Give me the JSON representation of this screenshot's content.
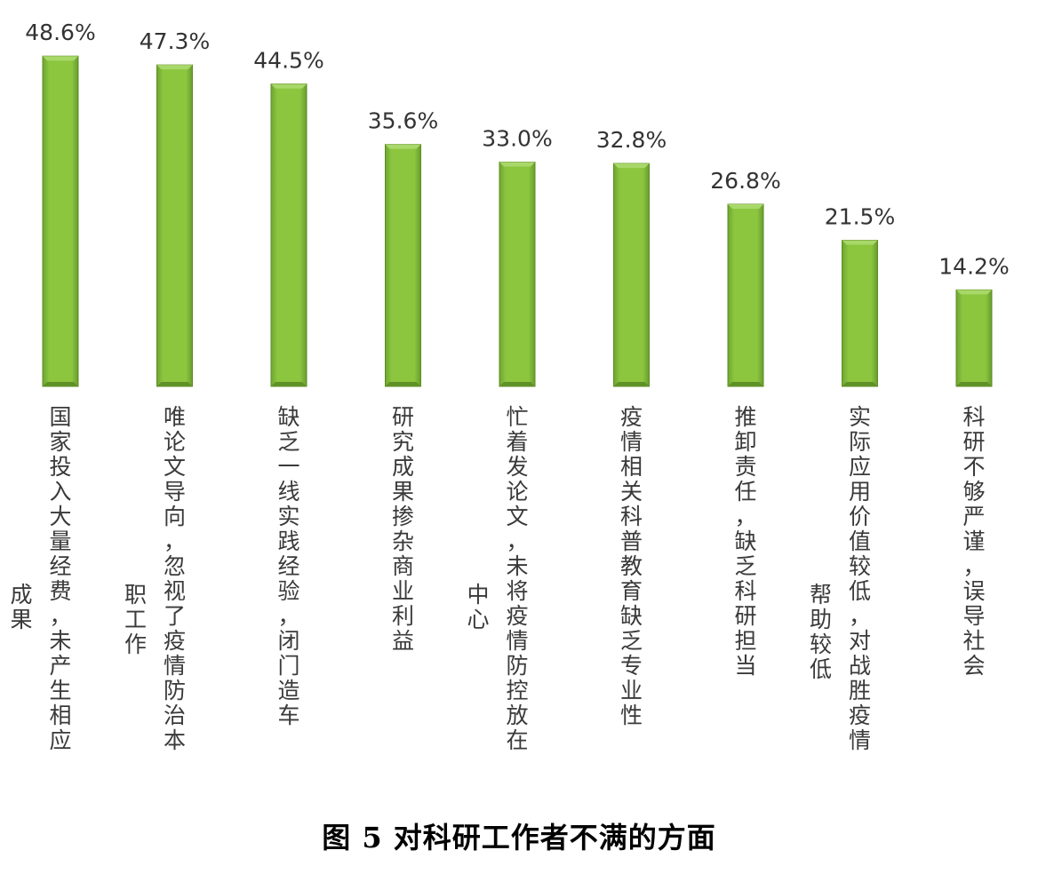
{
  "chart_data": {
    "type": "bar",
    "title": "",
    "xlabel": "",
    "ylabel": "",
    "ylim": [
      0,
      50
    ],
    "grid": false,
    "legend": "none",
    "categories": [
      "国家投入大量经费，未产生相应成果",
      "唯论文导向，忽视了疫情防治本职工作",
      "缺乏一线实践经验，闭门造车",
      "研究成果掺杂商业利益",
      "忙着发论文，未将疫情防控放在中心",
      "疫情相关科普教育缺乏专业性",
      "推卸责任，缺乏科研担当",
      "实际应用价值较低，对战胜疫情帮助较低",
      "科研不够严谨，误导社会"
    ],
    "values": [
      48.6,
      47.3,
      44.5,
      35.6,
      33.0,
      32.8,
      26.8,
      21.5,
      14.2
    ],
    "value_labels": [
      "48.6%",
      "47.3%",
      "44.5%",
      "35.6%",
      "33.0%",
      "32.8%",
      "26.8%",
      "21.5%",
      "14.2%"
    ],
    "bar_color": "#8cc63f",
    "bar_edge_color": "#5e8c24"
  },
  "figure_caption": "图 5 对科研工作者不满的方面"
}
